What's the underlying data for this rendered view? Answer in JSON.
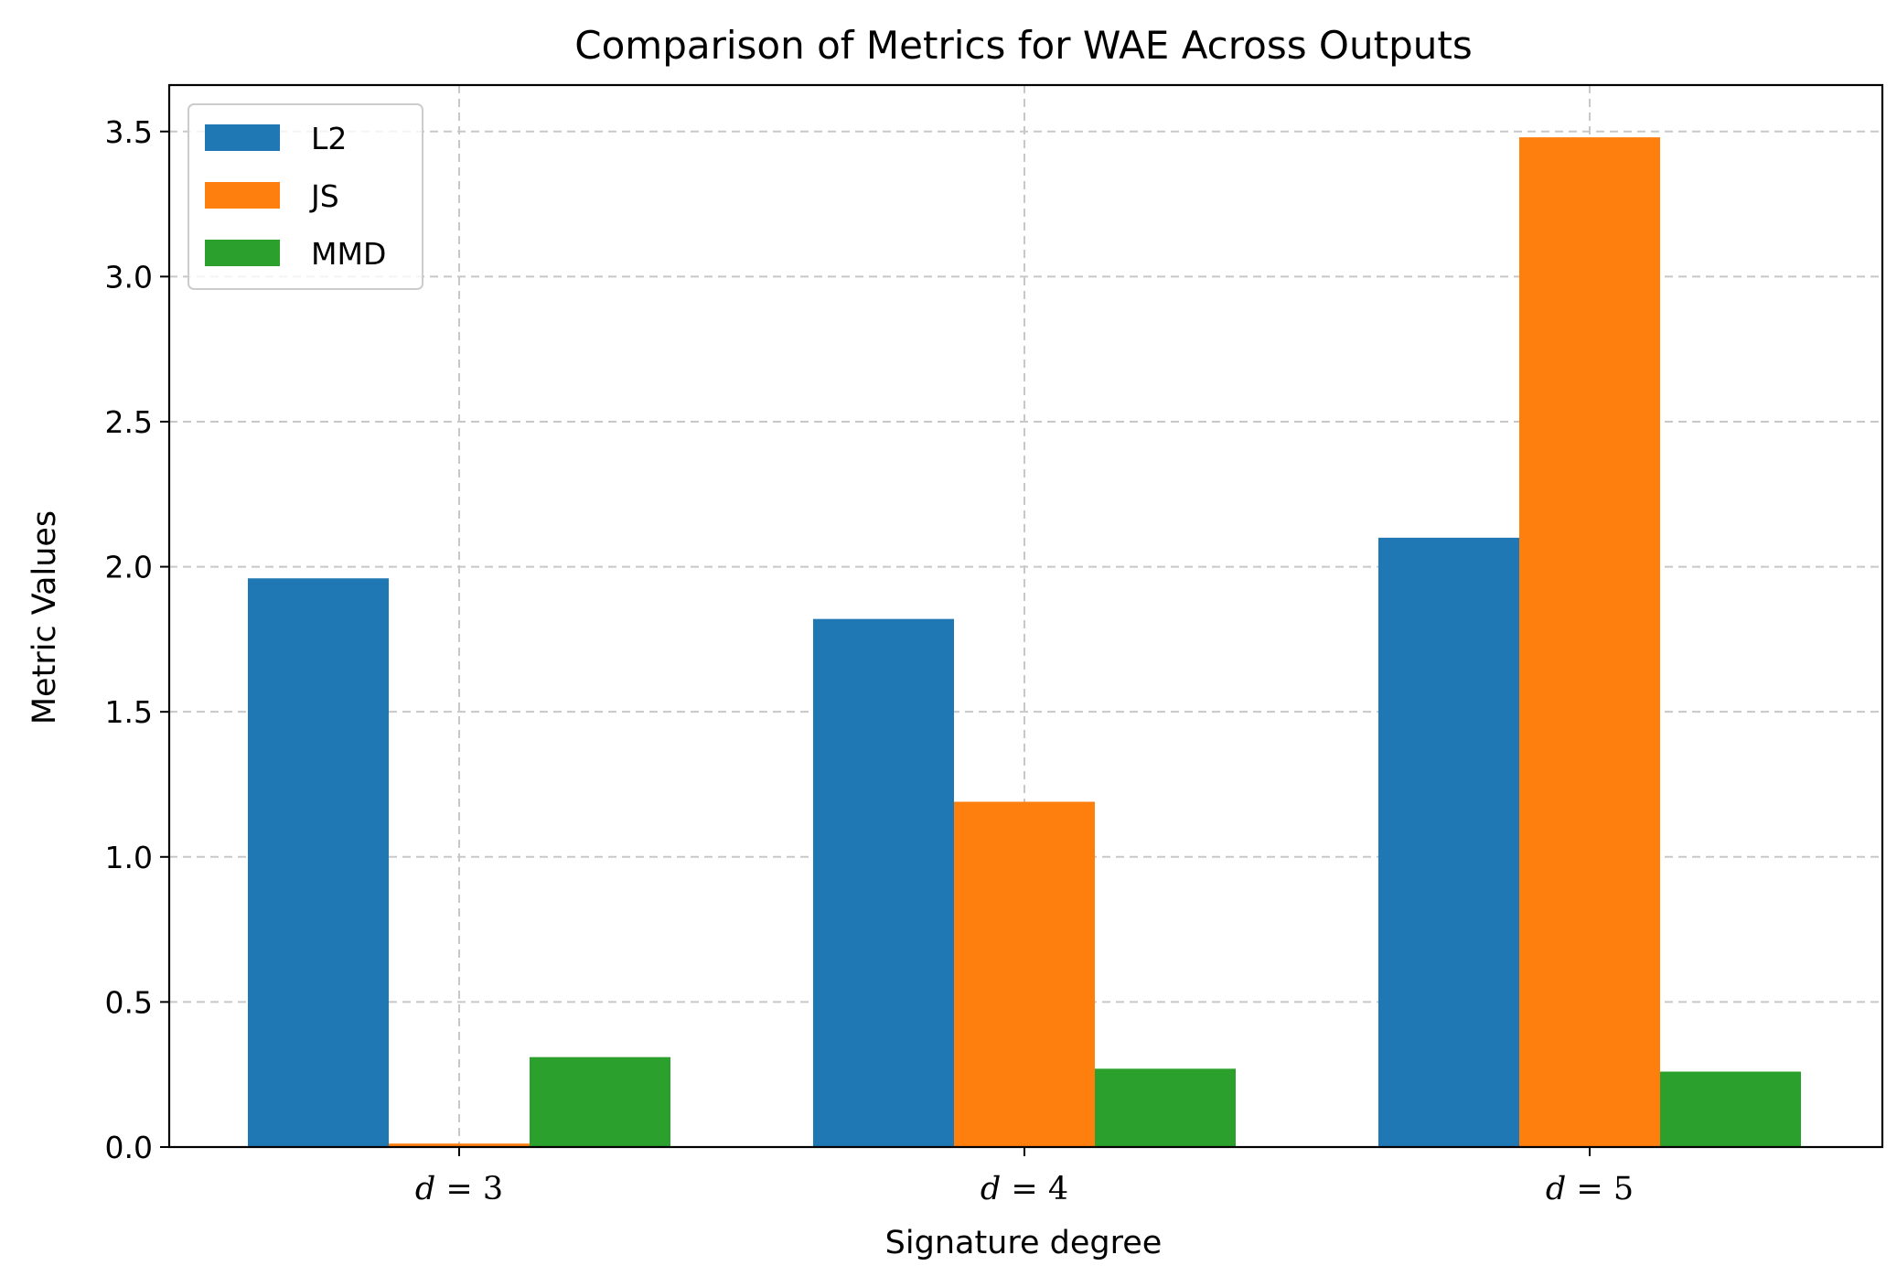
{
  "chart_data": {
    "type": "bar",
    "title": "Comparison of Metrics for WAE Across Outputs",
    "xlabel": "Signature degree",
    "ylabel": "Metric Values",
    "categories": [
      "d = 3",
      "d = 4",
      "d = 5"
    ],
    "category_parts": [
      {
        "var": "d",
        "rel": " = ",
        "num": "3"
      },
      {
        "var": "d",
        "rel": " = ",
        "num": "4"
      },
      {
        "var": "d",
        "rel": " = ",
        "num": "5"
      }
    ],
    "series": [
      {
        "name": "L2",
        "color": "#1f77b4",
        "values": [
          1.96,
          1.82,
          2.1
        ]
      },
      {
        "name": "JS",
        "color": "#ff7f0e",
        "values": [
          0.012,
          1.19,
          3.48
        ]
      },
      {
        "name": "MMD",
        "color": "#2ca02c",
        "values": [
          0.31,
          0.27,
          0.26
        ]
      }
    ],
    "ylim": [
      0,
      3.66
    ],
    "yticks": [
      0.0,
      0.5,
      1.0,
      1.5,
      2.0,
      2.5,
      3.0,
      3.5
    ],
    "ytick_labels": [
      "0.0",
      "0.5",
      "1.0",
      "1.5",
      "2.0",
      "2.5",
      "3.0",
      "3.5"
    ],
    "grid": true,
    "legend_position": "top-left"
  }
}
